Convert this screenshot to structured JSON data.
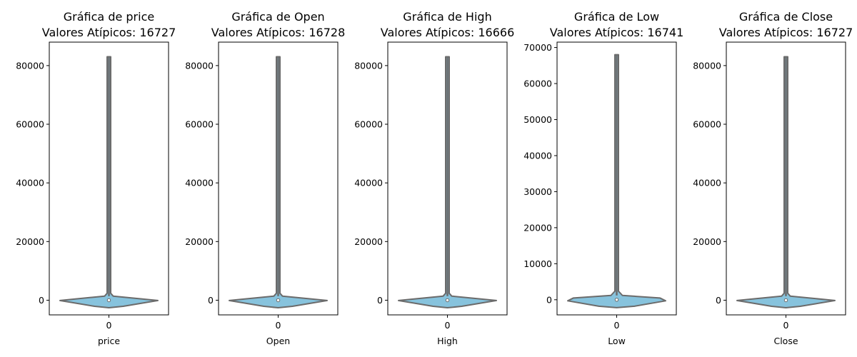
{
  "chart_data": [
    {
      "type": "violin",
      "title": "Gráfica de price",
      "subtitle": "Valores Atípicos: 16727",
      "xlabel": "price",
      "categories": [
        "0"
      ],
      "yticks": [
        0,
        20000,
        40000,
        60000,
        80000
      ],
      "ylim": [
        -5000,
        88000
      ],
      "violin": {
        "min": 0,
        "max": 83000,
        "median": 0,
        "peak_density_y": -100,
        "shoulder_y": 1400
      }
    },
    {
      "type": "violin",
      "title": "Gráfica de Open",
      "subtitle": "Valores Atípicos: 16728",
      "xlabel": "Open",
      "categories": [
        "0"
      ],
      "yticks": [
        0,
        20000,
        40000,
        60000,
        80000
      ],
      "ylim": [
        -5000,
        88000
      ],
      "violin": {
        "min": 0,
        "max": 83000,
        "median": 0,
        "peak_density_y": -100,
        "shoulder_y": 1400
      }
    },
    {
      "type": "violin",
      "title": "Gráfica de High",
      "subtitle": "Valores Atípicos: 16666",
      "xlabel": "High",
      "categories": [
        "0"
      ],
      "yticks": [
        0,
        20000,
        40000,
        60000,
        80000
      ],
      "ylim": [
        -5000,
        88000
      ],
      "violin": {
        "min": 0,
        "max": 83000,
        "median": 0,
        "peak_density_y": -100,
        "shoulder_y": 1400
      }
    },
    {
      "type": "violin",
      "title": "Gráfica de Low",
      "subtitle": "Valores Atípicos: 16741",
      "xlabel": "Low",
      "categories": [
        "0"
      ],
      "yticks": [
        0,
        10000,
        20000,
        30000,
        40000,
        50000,
        60000,
        70000
      ],
      "ylim": [
        -4200,
        71500
      ],
      "violin": {
        "min": 0,
        "max": 68000,
        "median": 0,
        "peak_density_y": -300,
        "shoulder_y": 1200
      }
    },
    {
      "type": "violin",
      "title": "Gráfica de Close",
      "subtitle": "Valores Atípicos: 16727",
      "xlabel": "Close",
      "categories": [
        "0"
      ],
      "yticks": [
        0,
        20000,
        40000,
        60000,
        80000
      ],
      "ylim": [
        -5000,
        88000
      ],
      "violin": {
        "min": 0,
        "max": 83000,
        "median": 0,
        "peak_density_y": -100,
        "shoulder_y": 1400
      }
    }
  ],
  "colors": {
    "violin_fill": "#87c3dd",
    "violin_edge": "#6b6b6b",
    "axis": "#000000",
    "median_dot": "#ffffff"
  }
}
